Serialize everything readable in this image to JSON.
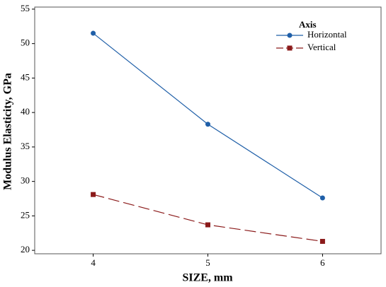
{
  "chart_data": {
    "type": "line",
    "xlabel": "SIZE, mm",
    "ylabel": "Modulus Elasticity, GPa",
    "x": [
      4,
      5,
      6
    ],
    "series": [
      {
        "name": "Horizontal",
        "color": "#1f5fa8",
        "marker": "circle",
        "dash": "solid",
        "values": [
          51.5,
          38.3,
          27.6
        ]
      },
      {
        "name": "Vertical",
        "color": "#8b1a1a",
        "marker": "square",
        "dash": "dashed",
        "values": [
          28.1,
          23.7,
          21.3
        ]
      }
    ],
    "legend_title": "Axis",
    "legend": "upper right",
    "xlim": [
      3.49,
      6.51
    ],
    "xticks": [
      4,
      5,
      6
    ],
    "ylim": [
      19.5,
      55.3
    ],
    "yticks": [
      20,
      25,
      30,
      35,
      40,
      45,
      50,
      55
    ]
  }
}
